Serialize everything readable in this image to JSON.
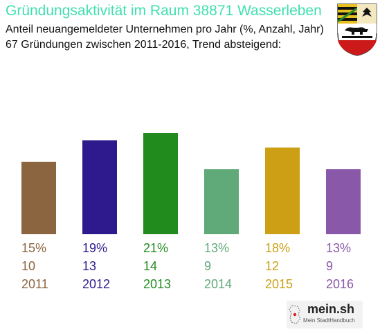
{
  "title": "Gründungsaktivität im Raum 38871 Wasserleben",
  "subtitle_line1": "Anteil neuangemeldeter Unternehmen pro Jahr (%, Anzahl, Jahr)",
  "subtitle_line2": "67 Gründungen zwischen 2011-2016, Trend absteigend:",
  "crest_icon": "saxony-anhalt-coat-of-arms-icon",
  "logo": {
    "name": "mein.sh",
    "tagline": "Mein StadtHandbuch"
  },
  "chart_data": {
    "type": "bar",
    "categories": [
      "2011",
      "2012",
      "2013",
      "2014",
      "2015",
      "2016"
    ],
    "values": [
      10,
      13,
      14,
      9,
      12,
      9
    ],
    "percent_labels": [
      "15%",
      "19%",
      "21%",
      "13%",
      "18%",
      "13%"
    ],
    "colors": [
      "#8b6540",
      "#2e1a8c",
      "#228b1e",
      "#5faa78",
      "#cc9f14",
      "#8a58a8"
    ],
    "ylim": [
      0,
      14
    ],
    "grid": false
  }
}
